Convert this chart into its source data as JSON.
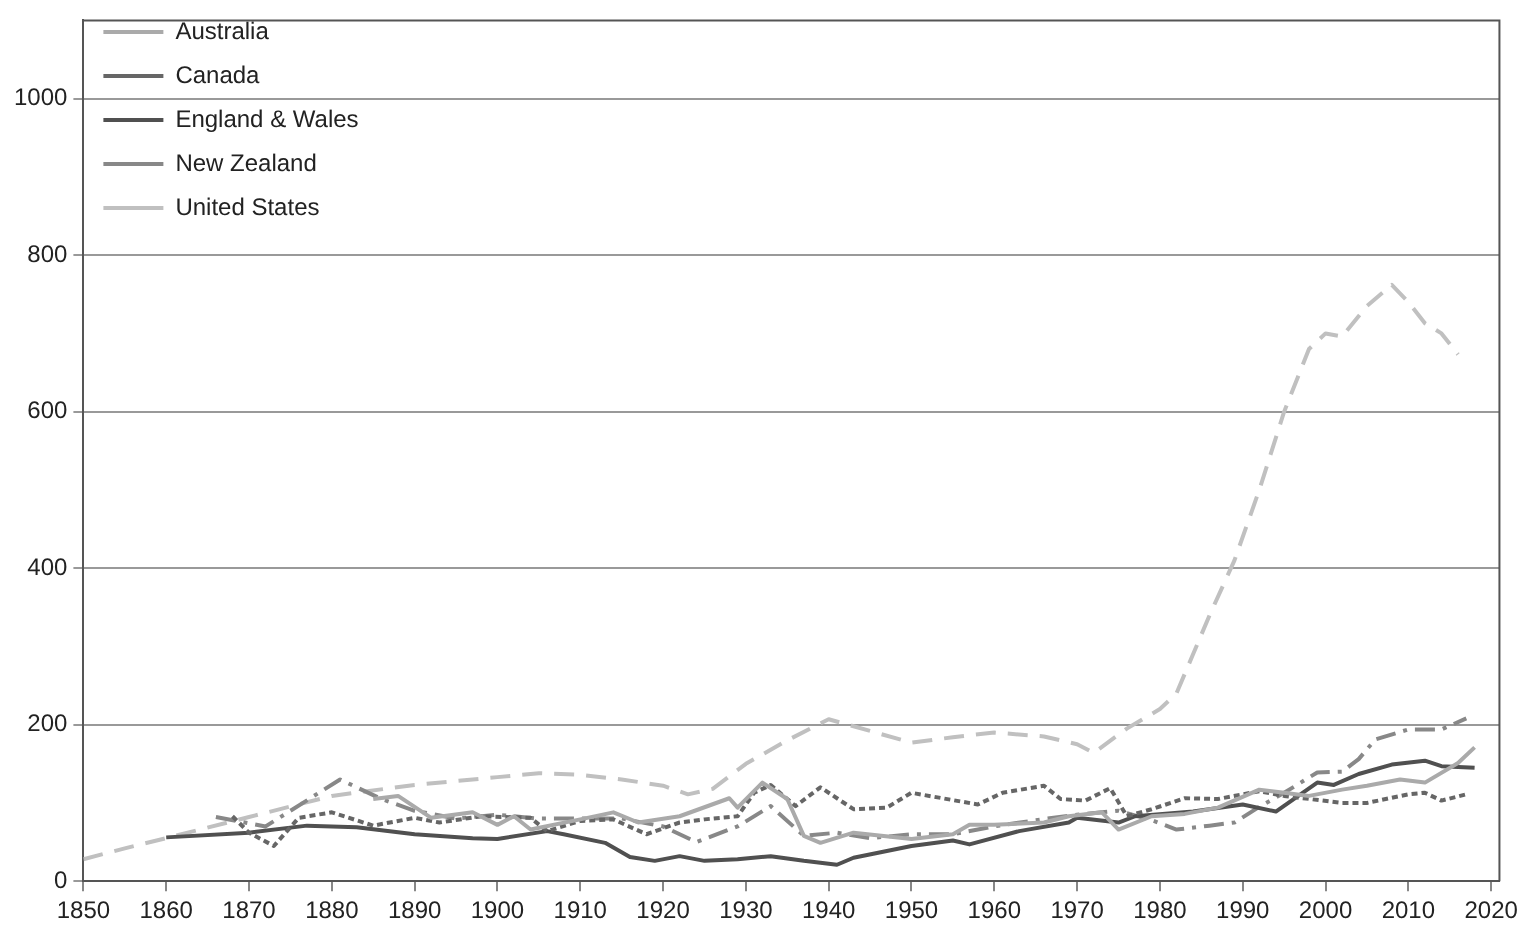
{
  "chart_data": {
    "type": "line",
    "xlim": [
      1850,
      2021
    ],
    "xticks": [
      1850,
      1860,
      1870,
      1880,
      1890,
      1900,
      1910,
      1920,
      1930,
      1940,
      1950,
      1960,
      1970,
      1980,
      1990,
      2000,
      2010,
      2020
    ],
    "ylim": [
      0,
      1100
    ],
    "yticks": [
      0,
      200,
      400,
      600,
      800,
      1000
    ],
    "grid": "y",
    "legend": "top left",
    "marker": "none",
    "series": [
      {
        "name": "Australia",
        "color": "#aaaaaa",
        "line_style": "solid",
        "x": [
          1885,
          1888,
          1892,
          1897,
          1900,
          1902,
          1904,
          1910,
          1914,
          1917,
          1922,
          1928,
          1929,
          1932,
          1935,
          1937,
          1939,
          1943,
          1950,
          1955,
          1957,
          1960,
          1966,
          1969,
          1973,
          1975,
          1979,
          1983,
          1987,
          1992,
          1995,
          1998,
          2002,
          2005,
          2009,
          2012,
          2016,
          2018
        ],
        "values": [
          105,
          109,
          81,
          88,
          72,
          83,
          66,
          79,
          88,
          75,
          83,
          106,
          94,
          126,
          105,
          58,
          49,
          62,
          54,
          60,
          72,
          72,
          75,
          83,
          88,
          66,
          83,
          86,
          94,
          117,
          113,
          109,
          117,
          122,
          130,
          126,
          151,
          171
        ]
      },
      {
        "name": "Canada",
        "color": "#666666",
        "line_style": "dotted",
        "x": [
          1868,
          1870,
          1873,
          1876,
          1880,
          1885,
          1890,
          1893,
          1898,
          1904,
          1906,
          1910,
          1914,
          1918,
          1922,
          1925,
          1929,
          1931,
          1933,
          1936,
          1939,
          1943,
          1947,
          1950,
          1958,
          1961,
          1966,
          1968,
          1971,
          1974,
          1976,
          1979,
          1983,
          1987,
          1992,
          1995,
          2002,
          2005,
          2010,
          2012,
          2014,
          2017
        ],
        "values": [
          83,
          62,
          45,
          81,
          88,
          71,
          81,
          75,
          83,
          81,
          64,
          77,
          79,
          60,
          75,
          79,
          83,
          113,
          123,
          96,
          120,
          92,
          94,
          113,
          98,
          113,
          122,
          105,
          103,
          119,
          83,
          92,
          106,
          105,
          115,
          109,
          100,
          100,
          111,
          113,
          103,
          111
        ]
      },
      {
        "name": "England & Wales",
        "color": "#505050",
        "line_style": "solid",
        "x": [
          1860,
          1870,
          1877,
          1883,
          1890,
          1897,
          1900,
          1906,
          1908,
          1913,
          1916,
          1919,
          1922,
          1925,
          1929,
          1933,
          1937,
          1941,
          1943,
          1950,
          1955,
          1957,
          1963,
          1969,
          1970,
          1975,
          1977,
          1984,
          1990,
          1994,
          1999,
          2001,
          2004,
          2008,
          2012,
          2014,
          2018
        ],
        "values": [
          56,
          62,
          71,
          69,
          60,
          55,
          54,
          64,
          60,
          49,
          31,
          26,
          32,
          26,
          28,
          32,
          26,
          21,
          30,
          45,
          52,
          47,
          64,
          75,
          81,
          75,
          83,
          89,
          98,
          89,
          126,
          123,
          137,
          149,
          154,
          147,
          145
        ]
      },
      {
        "name": "New Zealand",
        "color": "#888888",
        "line_style": "dashdot",
        "x": [
          1866,
          1872,
          1881,
          1886,
          1890,
          1895,
          1900,
          1905,
          1910,
          1915,
          1920,
          1924,
          1929,
          1933,
          1937,
          1941,
          1945,
          1950,
          1955,
          1960,
          1965,
          1970,
          1975,
          1979,
          1982,
          1986,
          1989,
          1992,
          1995,
          1999,
          2002,
          2004,
          2006,
          2010,
          2014,
          2017
        ],
        "values": [
          82,
          70,
          130,
          105,
          90,
          80,
          85,
          80,
          80,
          80,
          70,
          50,
          70,
          96,
          58,
          62,
          55,
          60,
          60,
          70,
          78,
          85,
          90,
          78,
          66,
          71,
          75,
          95,
          113,
          139,
          140,
          156,
          181,
          194,
          194,
          208
        ]
      },
      {
        "name": "United States",
        "color": "#c0c0c0",
        "line_style": "dashed",
        "x": [
          1850,
          1855,
          1860,
          1870,
          1880,
          1890,
          1900,
          1905,
          1910,
          1915,
          1920,
          1923,
          1926,
          1930,
          1935,
          1940,
          1945,
          1950,
          1955,
          1960,
          1966,
          1970,
          1972,
          1976,
          1980,
          1982,
          1984,
          1986,
          1989,
          1992,
          1995,
          1998,
          2000,
          2002,
          2005,
          2008,
          2010,
          2012,
          2014,
          2016
        ],
        "values": [
          28,
          42,
          55,
          82,
          109,
          123,
          133,
          138,
          136,
          130,
          122,
          111,
          118,
          150,
          180,
          207,
          192,
          177,
          184,
          190,
          185,
          175,
          164,
          195,
          220,
          240,
          290,
          340,
          410,
          500,
          600,
          680,
          700,
          696,
          735,
          762,
          740,
          713,
          700,
          673
        ]
      }
    ]
  }
}
